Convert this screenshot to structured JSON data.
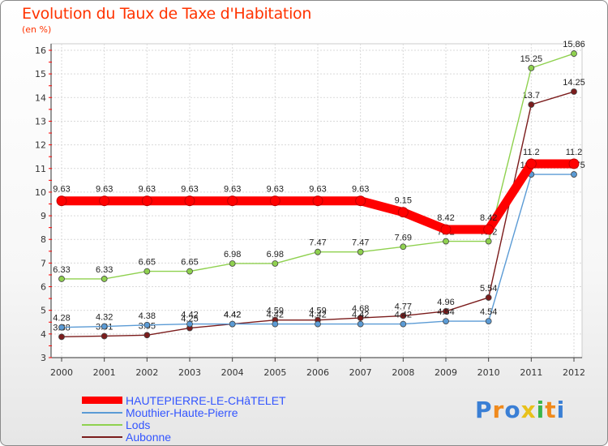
{
  "title": "Evolution du Taux de Taxe d'Habitation",
  "subtitle": "(en %)",
  "logo": {
    "text": "Proxiti",
    "colors": [
      "#3a7fd5",
      "#f08a1c",
      "#3a7fd5",
      "#e8c11a",
      "#3ab54a",
      "#f08a1c",
      "#3a7fd5"
    ]
  },
  "chart_data": {
    "type": "line",
    "x": [
      "2000",
      "2001",
      "2002",
      "2003",
      "2004",
      "2005",
      "2006",
      "2007",
      "2008",
      "2009",
      "2010",
      "2011",
      "2012"
    ],
    "ylim": [
      3,
      16
    ],
    "yticks": [
      "3",
      "4",
      "5",
      "6",
      "7",
      "8",
      "9",
      "10",
      "11",
      "12",
      "13",
      "14",
      "15",
      "16"
    ],
    "grid": true,
    "legend_position": "bottom-left",
    "series": [
      {
        "name": "HAUTEPIERRE-LE-CHâTELET",
        "color": "#ff0000",
        "values": [
          9.63,
          9.63,
          9.63,
          9.63,
          9.63,
          9.63,
          9.63,
          9.63,
          9.15,
          8.42,
          8.42,
          11.2,
          11.2
        ],
        "labels": [
          "9.63",
          "9.63",
          "9.63",
          "9.63",
          "9.63",
          "9.63",
          "9.63",
          "9.63",
          "9.15",
          "8.42",
          "8.42",
          "11.2",
          "11.2"
        ]
      },
      {
        "name": "Mouthier-Haute-Pierre",
        "color": "#5b9bd5",
        "values": [
          4.28,
          4.32,
          4.38,
          4.42,
          4.42,
          4.42,
          4.42,
          4.42,
          4.42,
          4.54,
          4.54,
          10.75,
          10.75
        ],
        "labels": [
          "4.28",
          "4.32",
          "4.38",
          "4.42",
          "4.42",
          "4.42",
          "4.42",
          "4.42",
          "4.42",
          "4.54",
          "4.54",
          "10.75",
          "10.75"
        ]
      },
      {
        "name": "Lods",
        "color": "#8fd14f",
        "values": [
          6.33,
          6.33,
          6.65,
          6.65,
          6.98,
          6.98,
          7.47,
          7.47,
          7.69,
          7.92,
          7.92,
          15.25,
          15.86
        ],
        "labels": [
          "6.33",
          "6.33",
          "6.65",
          "6.65",
          "6.98",
          "6.98",
          "7.47",
          "7.47",
          "7.69",
          "7.92",
          "7.92",
          "15.25",
          "15.86"
        ]
      },
      {
        "name": "Aubonne",
        "color": "#7b1c1c",
        "values": [
          3.88,
          3.91,
          3.95,
          4.25,
          4.42,
          4.59,
          4.59,
          4.68,
          4.77,
          4.96,
          5.54,
          13.7,
          14.25
        ],
        "labels": [
          "3.88",
          "3.91",
          "3.95",
          "4.25",
          "4.42",
          "4.59",
          "4.59",
          "4.68",
          "4.77",
          "4.96",
          "5.54",
          "13.7",
          "14.25"
        ]
      }
    ]
  }
}
